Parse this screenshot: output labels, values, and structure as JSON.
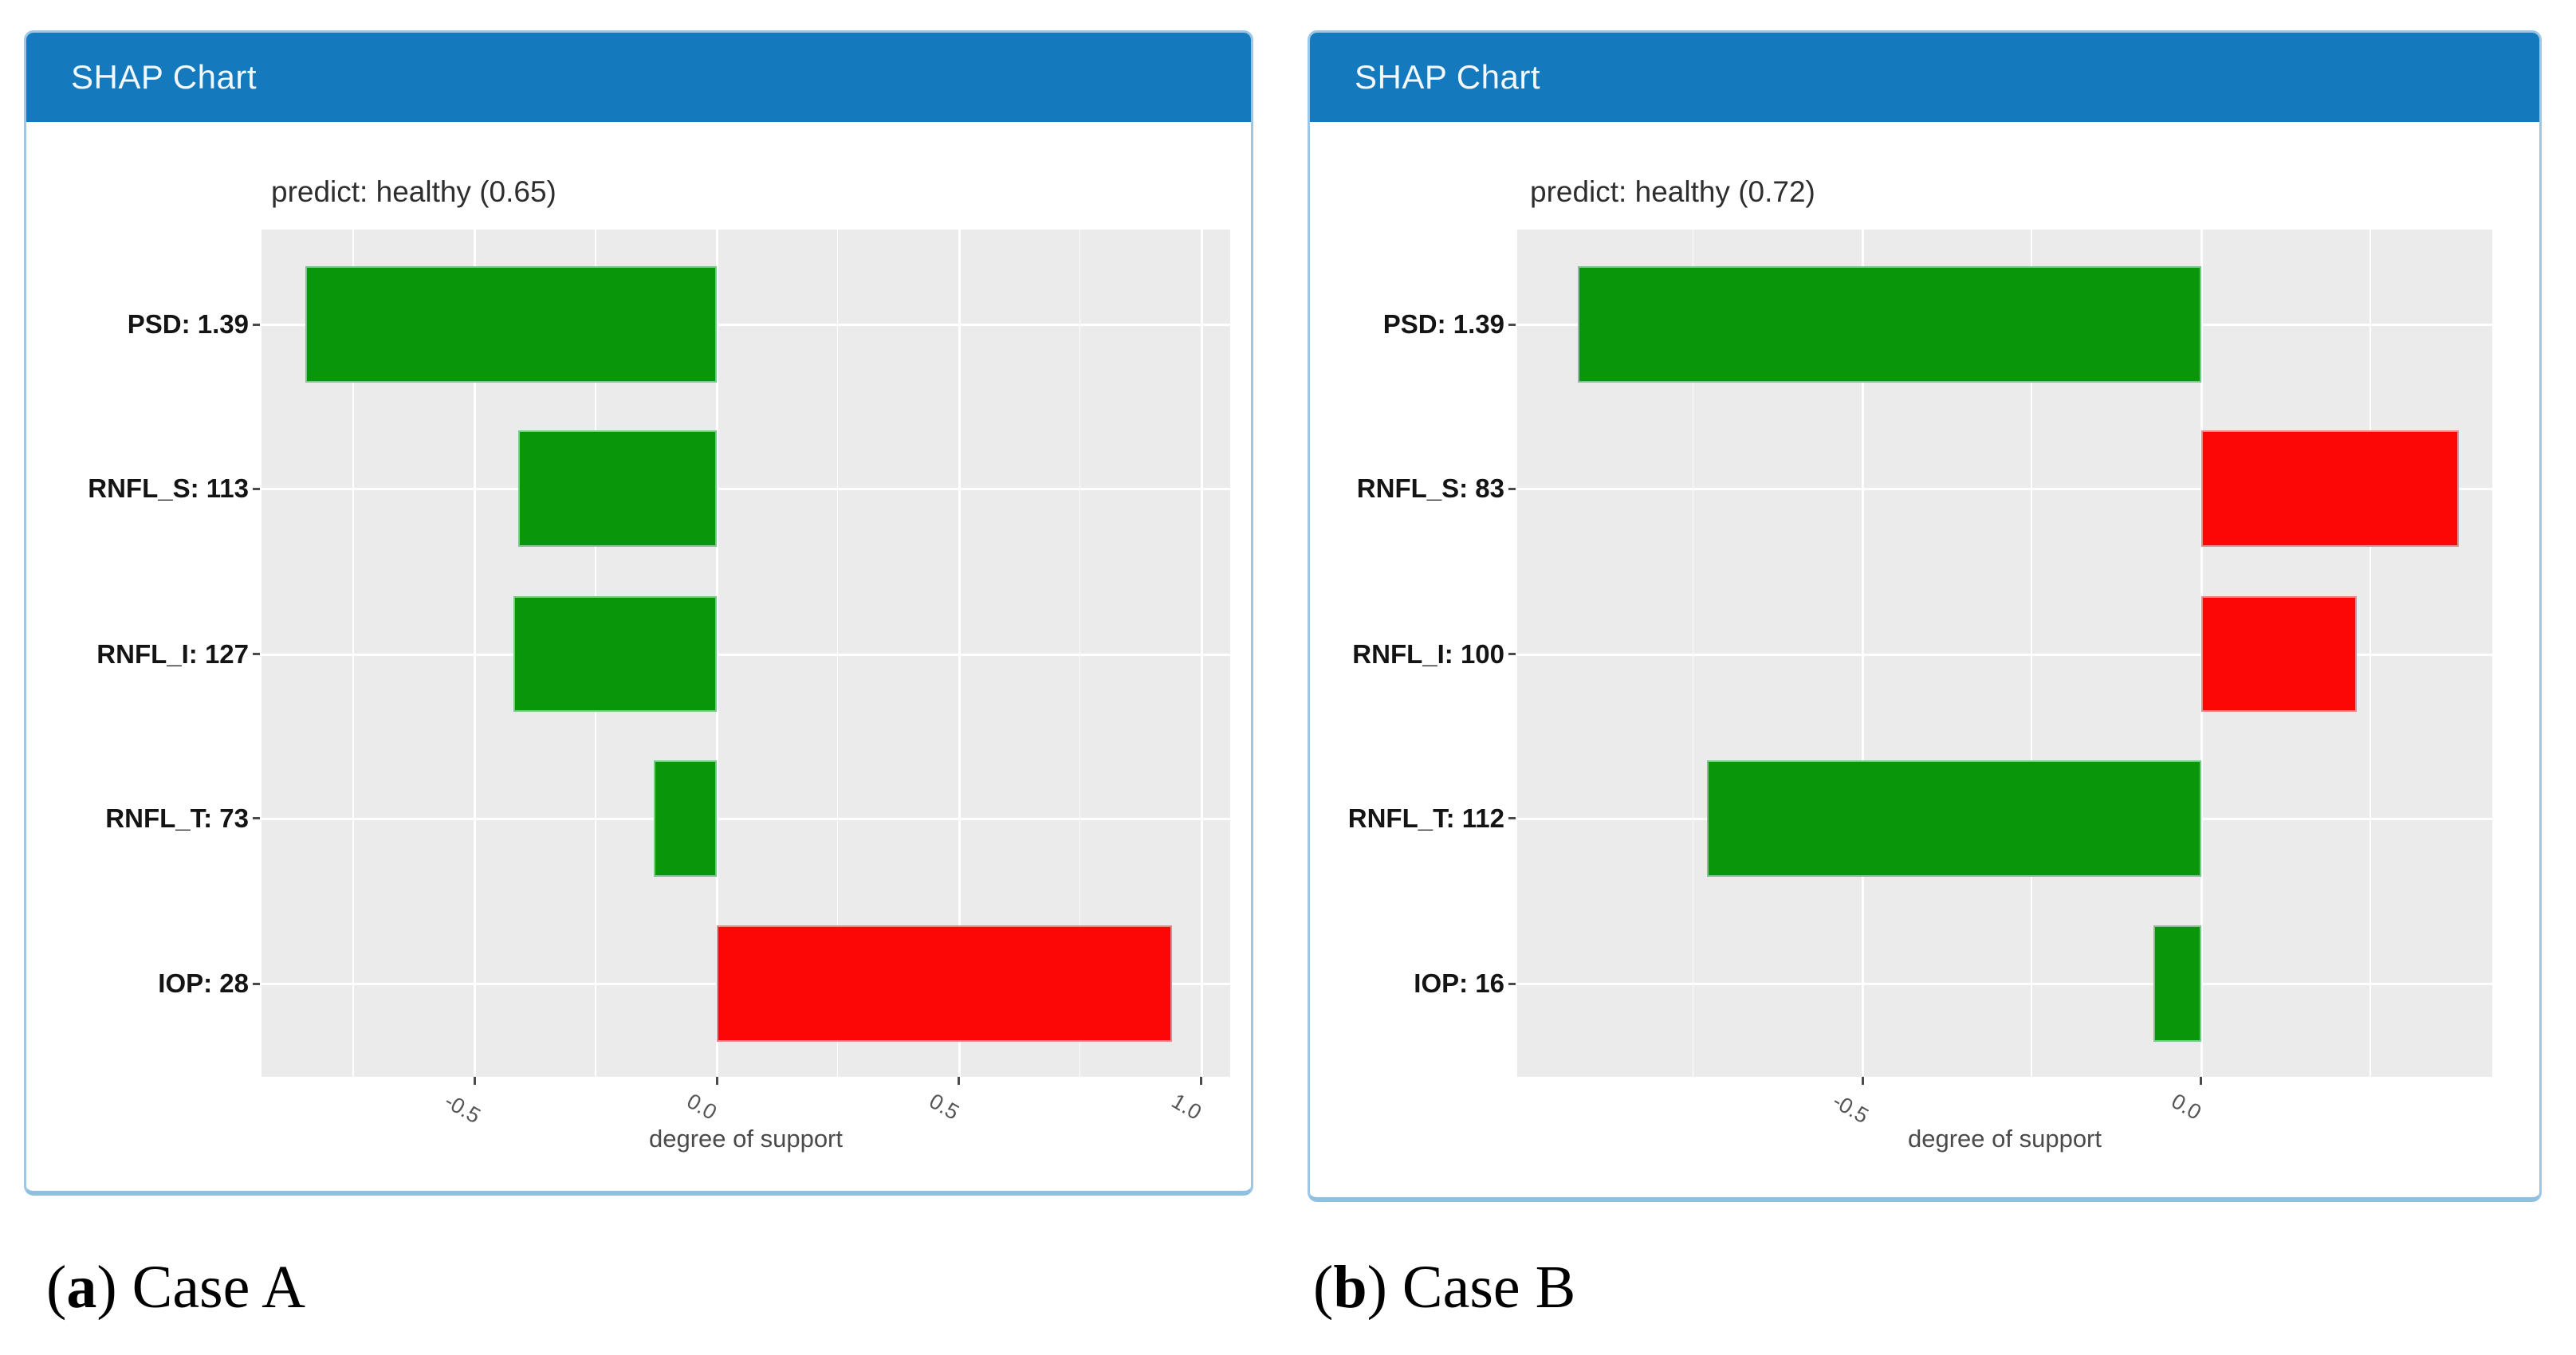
{
  "colors": {
    "header_bg": "#1579bd",
    "header_text": "#f3f8fd",
    "negative_bar_green": "#0a960a",
    "positive_bar_red": "#fd0606",
    "plot_background": "#ebebeb",
    "gridline": "#ffffff",
    "card_border": "#9cc7e6",
    "axis_text": "#555555",
    "y_label_text": "#141414"
  },
  "chart_data": [
    {
      "type": "bar",
      "orientation": "horizontal",
      "panel_header": "SHAP Chart",
      "title": "predict: healthy (0.65)",
      "categories": [
        "PSD: 1.39",
        "RNFL_S: 113",
        "RNFL_I: 127",
        "RNFL_T: 73",
        "IOP: 28"
      ],
      "values": [
        -0.85,
        -0.41,
        -0.42,
        -0.13,
        0.94
      ],
      "xlabel": "degree of support",
      "xlim": [
        -0.94,
        1.06
      ],
      "xticks": [
        -0.5,
        0.0,
        0.5,
        1.0
      ],
      "xtick_labels": [
        "-0.5",
        "0.0",
        "0.5",
        "1.0"
      ],
      "grid": true,
      "legend": false,
      "bar_color_rule": "negative values green, positive values red"
    },
    {
      "type": "bar",
      "orientation": "horizontal",
      "panel_header": "SHAP Chart",
      "title": "predict: healthy (0.72)",
      "categories": [
        "PSD: 1.39",
        "RNFL_S: 83",
        "RNFL_I: 100",
        "RNFL_T: 112",
        "IOP: 16"
      ],
      "values": [
        -0.92,
        0.38,
        0.23,
        -0.73,
        -0.07
      ],
      "xlabel": "degree of support",
      "xlim": [
        -1.01,
        0.43
      ],
      "xticks": [
        -0.5,
        0.0
      ],
      "xtick_labels": [
        "-0.5",
        "0.0"
      ],
      "grid": true,
      "legend": false,
      "bar_color_rule": "negative values green, positive values red"
    }
  ],
  "captions": [
    {
      "open": "(",
      "letter": "a",
      "close": ") ",
      "text": "Case A"
    },
    {
      "open": "(",
      "letter": "b",
      "close": ") ",
      "text": "Case B"
    }
  ]
}
